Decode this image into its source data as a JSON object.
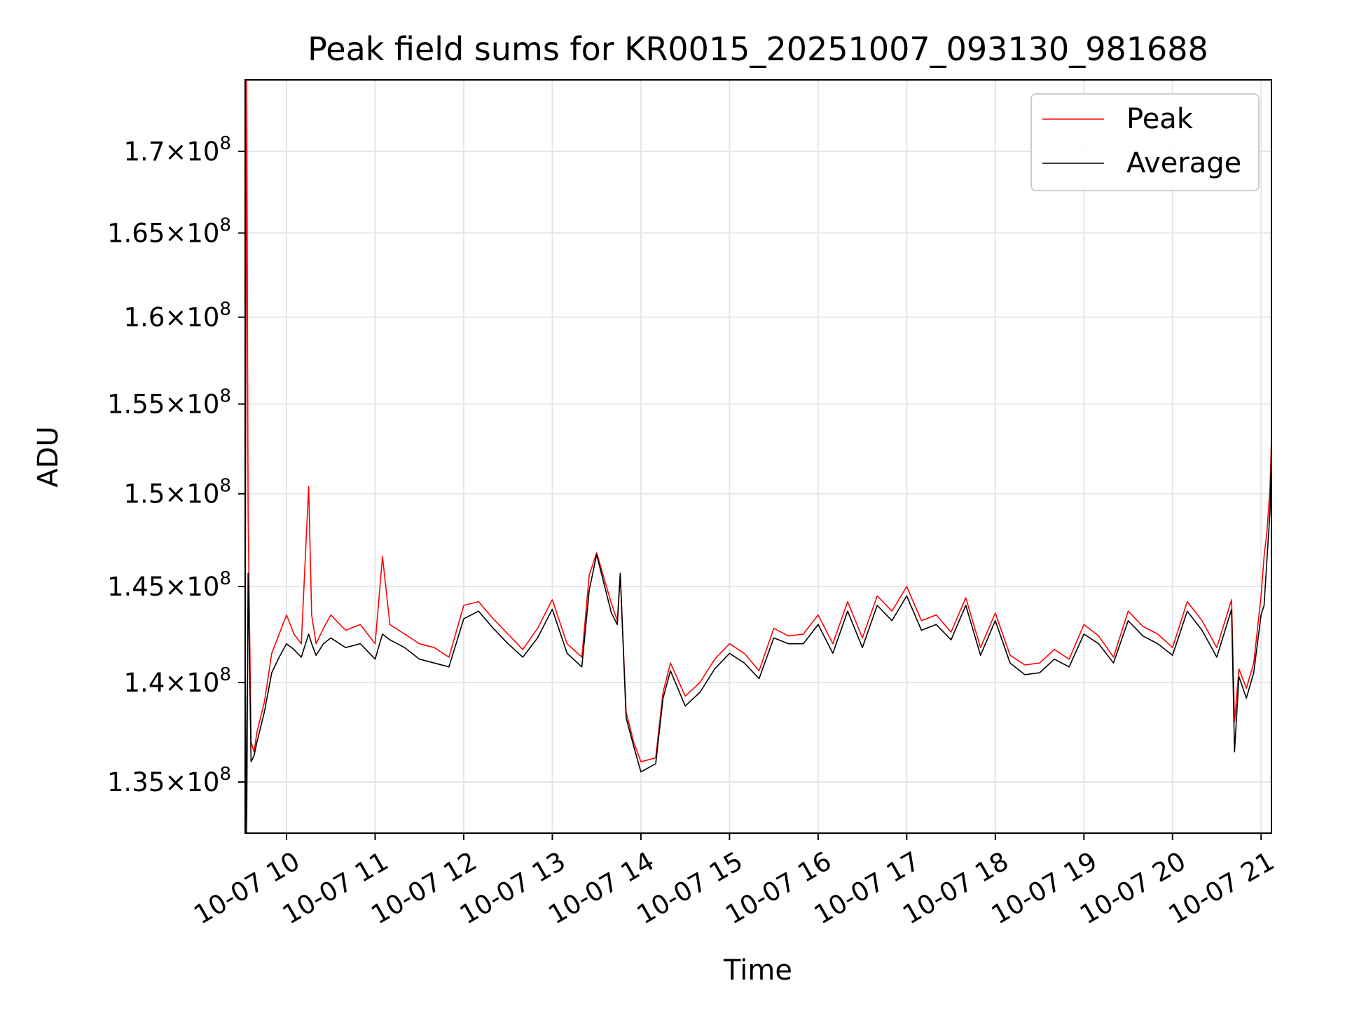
{
  "chart_data": {
    "type": "line",
    "title": "Peak field sums for KR0015_20251007_093130_981688",
    "xlabel": "Time",
    "ylabel": "ADU",
    "y_scale": "log",
    "grid": true,
    "legend_position": "top-right",
    "xlim": [
      "2025-10-07 09:32",
      "2025-10-07 21:07"
    ],
    "ylim": [
      132500000,
      174500000
    ],
    "x_ticks": [
      "10-07 10",
      "10-07 11",
      "10-07 12",
      "10-07 13",
      "10-07 14",
      "10-07 15",
      "10-07 16",
      "10-07 17",
      "10-07 18",
      "10-07 19",
      "10-07 20",
      "10-07 21"
    ],
    "y_ticks": [
      {
        "value": 135000000,
        "mant": "1.35",
        "exp": "8"
      },
      {
        "value": 140000000,
        "mant": "1.4",
        "exp": "8"
      },
      {
        "value": 145000000,
        "mant": "1.45",
        "exp": "8"
      },
      {
        "value": 150000000,
        "mant": "1.5",
        "exp": "8"
      },
      {
        "value": 155000000,
        "mant": "1.55",
        "exp": "8"
      },
      {
        "value": 160000000,
        "mant": "1.6",
        "exp": "8"
      },
      {
        "value": 165000000,
        "mant": "1.65",
        "exp": "8"
      },
      {
        "value": 170000000,
        "mant": "1.7",
        "exp": "8"
      }
    ],
    "series": [
      {
        "name": "Peak",
        "color": "#ff0000",
        "x": [
          "09:32",
          "09:33",
          "09:34",
          "09:36",
          "09:38",
          "09:40",
          "09:45",
          "09:50",
          "09:55",
          "10:00",
          "10:05",
          "10:10",
          "10:15",
          "10:17",
          "10:20",
          "10:25",
          "10:30",
          "10:40",
          "10:50",
          "11:00",
          "11:05",
          "11:10",
          "11:20",
          "11:30",
          "11:40",
          "11:50",
          "12:00",
          "12:10",
          "12:20",
          "12:30",
          "12:40",
          "12:50",
          "13:00",
          "13:10",
          "13:20",
          "13:25",
          "13:30",
          "13:40",
          "13:44",
          "13:46",
          "13:50",
          "13:55",
          "14:00",
          "14:10",
          "14:15",
          "14:20",
          "14:30",
          "14:40",
          "14:50",
          "15:00",
          "15:10",
          "15:20",
          "15:30",
          "15:40",
          "15:50",
          "16:00",
          "16:10",
          "16:20",
          "16:30",
          "16:40",
          "16:50",
          "17:00",
          "17:10",
          "17:20",
          "17:30",
          "17:40",
          "17:50",
          "18:00",
          "18:10",
          "18:20",
          "18:30",
          "18:40",
          "18:50",
          "19:00",
          "19:10",
          "19:20",
          "19:30",
          "19:40",
          "19:50",
          "20:00",
          "20:10",
          "20:20",
          "20:30",
          "20:40",
          "20:42",
          "20:45",
          "20:50",
          "20:55",
          "21:00",
          "21:02",
          "21:04",
          "21:06",
          "21:07"
        ],
        "values": [
          142000000,
          174500000,
          148800000,
          137000000,
          136500000,
          137500000,
          139000000,
          141500000,
          142500000,
          143500000,
          142500000,
          142000000,
          150400000,
          143500000,
          142000000,
          142800000,
          143500000,
          142700000,
          143000000,
          142000000,
          146600000,
          143000000,
          142500000,
          142000000,
          141800000,
          141300000,
          144000000,
          144200000,
          143300000,
          142500000,
          141700000,
          142800000,
          144300000,
          142000000,
          141300000,
          145600000,
          146800000,
          144100000,
          143200000,
          145600000,
          138500000,
          137000000,
          136000000,
          136200000,
          139500000,
          141000000,
          139300000,
          140000000,
          141200000,
          142000000,
          141500000,
          140600000,
          142800000,
          142400000,
          142500000,
          143500000,
          142000000,
          144200000,
          142300000,
          144500000,
          143700000,
          145000000,
          143200000,
          143500000,
          142600000,
          144400000,
          141800000,
          143600000,
          141400000,
          140900000,
          141000000,
          141700000,
          141200000,
          143000000,
          142400000,
          141300000,
          143700000,
          142900000,
          142500000,
          141800000,
          144200000,
          143200000,
          141800000,
          144300000,
          138000000,
          140700000,
          139700000,
          141000000,
          144500000,
          146600000,
          148000000,
          150300000,
          153000000
        ]
      },
      {
        "name": "Average",
        "color": "#000000",
        "x": [
          "09:32",
          "09:33",
          "09:34",
          "09:36",
          "09:38",
          "09:40",
          "09:45",
          "09:50",
          "09:55",
          "10:00",
          "10:05",
          "10:10",
          "10:15",
          "10:17",
          "10:20",
          "10:25",
          "10:30",
          "10:40",
          "10:50",
          "11:00",
          "11:05",
          "11:10",
          "11:20",
          "11:30",
          "11:40",
          "11:50",
          "12:00",
          "12:10",
          "12:20",
          "12:30",
          "12:40",
          "12:50",
          "13:00",
          "13:10",
          "13:20",
          "13:25",
          "13:30",
          "13:40",
          "13:44",
          "13:46",
          "13:50",
          "13:55",
          "14:00",
          "14:10",
          "14:15",
          "14:20",
          "14:30",
          "14:40",
          "14:50",
          "15:00",
          "15:10",
          "15:20",
          "15:30",
          "15:40",
          "15:50",
          "16:00",
          "16:10",
          "16:20",
          "16:30",
          "16:40",
          "16:50",
          "17:00",
          "17:10",
          "17:20",
          "17:30",
          "17:40",
          "17:50",
          "18:00",
          "18:10",
          "18:20",
          "18:30",
          "18:40",
          "18:50",
          "19:00",
          "19:10",
          "19:20",
          "19:30",
          "19:40",
          "19:50",
          "20:00",
          "20:10",
          "20:20",
          "20:30",
          "20:40",
          "20:42",
          "20:45",
          "20:50",
          "20:55",
          "21:00",
          "21:02",
          "21:04",
          "21:06",
          "21:07"
        ],
        "values": [
          141500000,
          132500000,
          145700000,
          136000000,
          136300000,
          137000000,
          138500000,
          140500000,
          141300000,
          142000000,
          141700000,
          141300000,
          142500000,
          142000000,
          141400000,
          142000000,
          142300000,
          141800000,
          142000000,
          141200000,
          142500000,
          142200000,
          141800000,
          141200000,
          141000000,
          140800000,
          143300000,
          143700000,
          142800000,
          142000000,
          141300000,
          142300000,
          143800000,
          141500000,
          140800000,
          144800000,
          146700000,
          143600000,
          143000000,
          145700000,
          138200000,
          136800000,
          135500000,
          135900000,
          139200000,
          140600000,
          138800000,
          139500000,
          140700000,
          141500000,
          141000000,
          140200000,
          142300000,
          142000000,
          142000000,
          143000000,
          141500000,
          143700000,
          141800000,
          144000000,
          143200000,
          144500000,
          142700000,
          143000000,
          142200000,
          144000000,
          141400000,
          143200000,
          141000000,
          140400000,
          140500000,
          141200000,
          140800000,
          142500000,
          142000000,
          141000000,
          143200000,
          142400000,
          142000000,
          141400000,
          143700000,
          142700000,
          141300000,
          143800000,
          136500000,
          140300000,
          139200000,
          140500000,
          143500000,
          144000000,
          146500000,
          149000000,
          152300000
        ]
      }
    ]
  }
}
